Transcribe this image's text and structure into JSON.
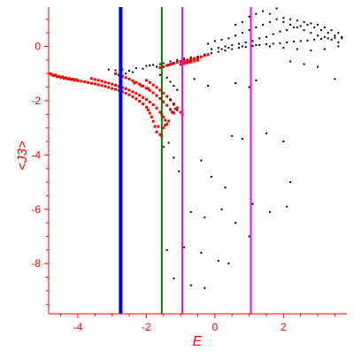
{
  "chart_data": {
    "type": "scatter",
    "xlabel": "E",
    "ylabel": "<J3>",
    "xlim": [
      -4.85,
      3.85
    ],
    "ylim": [
      -9.85,
      1.45
    ],
    "xticks": [
      -4,
      -2,
      0,
      2
    ],
    "xtick_labels": [
      "-4",
      "-2",
      "0",
      "2"
    ],
    "yticks": [
      0,
      -2,
      -4,
      -6,
      -8
    ],
    "ytick_labels": [
      "0",
      "-2",
      "-4",
      "-6",
      "-8"
    ],
    "grid": false,
    "colors": {
      "axis": "#ff0000",
      "red_series": "#ff0000",
      "black_series": "#000000"
    },
    "vertical_lines": [
      {
        "x": -2.75,
        "color": "#0000ff",
        "width": 4
      },
      {
        "x": -1.55,
        "color": "#008000",
        "width": 2
      },
      {
        "x": -0.95,
        "color": "#ff00ff",
        "width": 2
      },
      {
        "x": 1.05,
        "color": "#ff00ff",
        "width": 2
      }
    ],
    "series": [
      {
        "color": "#ff0000",
        "marker_size": 3,
        "points": [
          [
            -4.8,
            -1.0
          ],
          [
            -4.75,
            -1.05
          ],
          [
            -4.7,
            -1.08
          ],
          [
            -4.65,
            -1.05
          ],
          [
            -4.6,
            -1.12
          ],
          [
            -4.55,
            -1.1
          ],
          [
            -4.5,
            -1.15
          ],
          [
            -4.45,
            -1.12
          ],
          [
            -4.4,
            -1.18
          ],
          [
            -4.35,
            -1.15
          ],
          [
            -4.3,
            -1.2
          ],
          [
            -4.25,
            -1.18
          ],
          [
            -4.2,
            -1.22
          ],
          [
            -4.15,
            -1.2
          ],
          [
            -4.1,
            -1.25
          ],
          [
            -4.05,
            -1.22
          ],
          [
            -4.0,
            -1.26
          ],
          [
            -3.9,
            -1.28
          ],
          [
            -3.8,
            -1.3
          ],
          [
            -3.7,
            -1.33
          ],
          [
            -3.6,
            -1.36
          ],
          [
            -3.5,
            -1.38
          ],
          [
            -3.4,
            -1.41
          ],
          [
            -3.3,
            -1.44
          ],
          [
            -3.2,
            -1.47
          ],
          [
            -3.1,
            -1.51
          ],
          [
            -3.0,
            -1.55
          ],
          [
            -2.9,
            -1.58
          ],
          [
            -2.8,
            -1.62
          ],
          [
            -2.7,
            -1.67
          ],
          [
            -2.6,
            -1.72
          ],
          [
            -2.5,
            -1.78
          ],
          [
            -2.4,
            -1.85
          ],
          [
            -2.3,
            -1.93
          ],
          [
            -2.2,
            -2.02
          ],
          [
            -2.1,
            -2.12
          ],
          [
            -2.0,
            -2.24
          ],
          [
            -1.95,
            -2.34
          ],
          [
            -1.9,
            -2.46
          ],
          [
            -1.85,
            -2.6
          ],
          [
            -1.8,
            -2.76
          ],
          [
            -1.75,
            -2.95
          ],
          [
            -1.7,
            -3.15
          ],
          [
            -3.6,
            -1.18
          ],
          [
            -3.5,
            -1.22
          ],
          [
            -3.4,
            -1.25
          ],
          [
            -3.3,
            -1.28
          ],
          [
            -3.2,
            -1.32
          ],
          [
            -3.1,
            -1.35
          ],
          [
            -3.0,
            -1.39
          ],
          [
            -2.9,
            -1.43
          ],
          [
            -2.8,
            -1.47
          ],
          [
            -2.7,
            -1.52
          ],
          [
            -2.6,
            -1.56
          ],
          [
            -2.5,
            -1.61
          ],
          [
            -2.4,
            -1.67
          ],
          [
            -2.3,
            -1.73
          ],
          [
            -2.2,
            -1.8
          ],
          [
            -2.1,
            -1.88
          ],
          [
            -2.0,
            -1.96
          ],
          [
            -1.9,
            -2.05
          ],
          [
            -1.8,
            -2.15
          ],
          [
            -1.7,
            -2.27
          ],
          [
            -1.6,
            -2.42
          ],
          [
            -1.55,
            -2.5
          ],
          [
            -1.5,
            -2.6
          ],
          [
            -1.45,
            -2.72
          ],
          [
            -1.4,
            -2.86
          ],
          [
            -2.9,
            -1.0
          ],
          [
            -2.8,
            -1.05
          ],
          [
            -2.7,
            -1.1
          ],
          [
            -2.6,
            -1.15
          ],
          [
            -2.5,
            -1.2
          ],
          [
            -2.4,
            -1.26
          ],
          [
            -2.3,
            -1.32
          ],
          [
            -2.2,
            -1.39
          ],
          [
            -2.1,
            -1.46
          ],
          [
            -2.0,
            -1.54
          ],
          [
            -1.9,
            -1.62
          ],
          [
            -1.8,
            -1.71
          ],
          [
            -1.7,
            -1.81
          ],
          [
            -1.6,
            -1.92
          ],
          [
            -1.5,
            -2.04
          ],
          [
            -1.4,
            -2.17
          ],
          [
            -1.3,
            -2.32
          ],
          [
            -1.25,
            -2.42
          ],
          [
            -2.0,
            -1.25
          ],
          [
            -1.9,
            -1.33
          ],
          [
            -1.8,
            -1.42
          ],
          [
            -1.7,
            -1.51
          ],
          [
            -1.6,
            -1.61
          ],
          [
            -1.5,
            -1.72
          ],
          [
            -1.4,
            -1.84
          ],
          [
            -1.3,
            -1.97
          ],
          [
            -1.2,
            -2.11
          ],
          [
            -1.1,
            -2.26
          ],
          [
            -1.0,
            -2.42
          ],
          [
            -0.95,
            -2.52
          ],
          [
            -1.6,
            -0.78
          ],
          [
            -1.5,
            -0.75
          ],
          [
            -1.4,
            -0.7
          ],
          [
            -1.3,
            -0.66
          ],
          [
            -1.2,
            -0.62
          ],
          [
            -1.1,
            -0.58
          ],
          [
            -1.0,
            -0.55
          ],
          [
            -0.9,
            -0.52
          ],
          [
            -0.8,
            -0.5
          ],
          [
            -0.7,
            -0.47
          ],
          [
            -0.6,
            -0.44
          ],
          [
            -0.5,
            -0.41
          ],
          [
            -0.4,
            -0.38
          ],
          [
            -0.3,
            -0.34
          ],
          [
            -0.2,
            -0.3
          ],
          [
            -1.0,
            -0.66
          ],
          [
            -0.9,
            -0.63
          ],
          [
            -0.8,
            -0.6
          ],
          [
            -0.7,
            -0.57
          ],
          [
            -0.6,
            -0.54
          ],
          [
            -0.5,
            -0.51
          ],
          [
            -1.65,
            -2.95
          ],
          [
            -1.6,
            -3.25
          ],
          [
            -1.55,
            -3.3
          ],
          [
            -1.5,
            -3.0
          ],
          [
            -1.45,
            -2.9
          ],
          [
            -1.35,
            -2.75
          ],
          [
            -1.2,
            -2.45
          ],
          [
            -1.15,
            -2.3
          ],
          [
            -2.35,
            -1.35
          ],
          [
            -2.15,
            -1.45
          ],
          [
            -1.95,
            -1.55
          ],
          [
            -1.35,
            -0.68
          ],
          [
            -1.25,
            -0.64
          ],
          [
            -0.85,
            -0.6
          ],
          [
            -0.75,
            -0.55
          ]
        ]
      },
      {
        "color": "#000000",
        "marker_size": 2,
        "points": [
          [
            -3.1,
            -0.85
          ],
          [
            -2.9,
            -0.88
          ],
          [
            -2.7,
            -0.85
          ],
          [
            -2.5,
            -0.9
          ],
          [
            -2.3,
            -0.8
          ],
          [
            -2.1,
            -0.82
          ],
          [
            -1.9,
            -0.7
          ],
          [
            -1.7,
            -0.75
          ],
          [
            -1.5,
            -0.62
          ],
          [
            -1.3,
            -0.55
          ],
          [
            -1.1,
            -0.5
          ],
          [
            -0.9,
            -0.45
          ],
          [
            -0.7,
            -0.4
          ],
          [
            -0.5,
            -0.38
          ],
          [
            -0.3,
            -0.3
          ],
          [
            -0.1,
            -0.25
          ],
          [
            0.1,
            -0.2
          ],
          [
            0.3,
            -0.15
          ],
          [
            0.5,
            -0.1
          ],
          [
            0.7,
            -0.05
          ],
          [
            0.9,
            -0.02
          ],
          [
            1.1,
            0.02
          ],
          [
            1.3,
            0.05
          ],
          [
            1.5,
            0.08
          ],
          [
            1.7,
            0.1
          ],
          [
            1.9,
            0.12
          ],
          [
            2.1,
            0.15
          ],
          [
            2.3,
            0.18
          ],
          [
            2.5,
            0.2
          ],
          [
            2.7,
            0.22
          ],
          [
            2.9,
            0.25
          ],
          [
            3.1,
            0.28
          ],
          [
            3.3,
            0.3
          ],
          [
            3.5,
            0.32
          ],
          [
            3.7,
            0.35
          ],
          [
            -0.2,
            0.1
          ],
          [
            0.0,
            0.2
          ],
          [
            0.2,
            0.25
          ],
          [
            0.4,
            0.3
          ],
          [
            0.6,
            0.4
          ],
          [
            0.8,
            0.5
          ],
          [
            1.0,
            0.6
          ],
          [
            1.2,
            0.7
          ],
          [
            1.4,
            0.8
          ],
          [
            1.6,
            0.9
          ],
          [
            1.8,
            1.0
          ],
          [
            2.0,
            1.05
          ],
          [
            2.2,
            1.0
          ],
          [
            2.4,
            0.95
          ],
          [
            2.6,
            0.9
          ],
          [
            2.8,
            0.85
          ],
          [
            3.0,
            0.8
          ],
          [
            3.2,
            0.7
          ],
          [
            3.4,
            0.6
          ],
          [
            3.6,
            0.5
          ],
          [
            -0.1,
            -0.1
          ],
          [
            0.1,
            -0.05
          ],
          [
            0.3,
            0.0
          ],
          [
            0.5,
            0.05
          ],
          [
            0.7,
            0.1
          ],
          [
            0.9,
            0.15
          ],
          [
            1.1,
            0.2
          ],
          [
            1.3,
            0.3
          ],
          [
            1.5,
            0.35
          ],
          [
            1.7,
            0.45
          ],
          [
            1.9,
            0.55
          ],
          [
            2.1,
            0.6
          ],
          [
            2.3,
            0.7
          ],
          [
            2.5,
            0.75
          ],
          [
            2.7,
            0.8
          ],
          [
            2.9,
            0.7
          ],
          [
            3.1,
            0.6
          ],
          [
            3.3,
            0.5
          ],
          [
            3.5,
            0.4
          ],
          [
            3.7,
            0.3
          ],
          [
            0.6,
            0.8
          ],
          [
            0.8,
            0.9
          ],
          [
            1.0,
            1.1
          ],
          [
            1.2,
            1.2
          ],
          [
            1.4,
            1.3
          ],
          [
            1.6,
            1.2
          ],
          [
            1.8,
            1.4
          ],
          [
            2.0,
            0.9
          ],
          [
            2.2,
            0.8
          ],
          [
            2.4,
            0.7
          ],
          [
            2.6,
            0.6
          ],
          [
            2.8,
            0.5
          ],
          [
            3.0,
            0.4
          ],
          [
            3.2,
            0.35
          ],
          [
            3.4,
            0.25
          ],
          [
            3.6,
            0.15
          ],
          [
            0.2,
            -0.1
          ],
          [
            0.4,
            -0.05
          ],
          [
            0.8,
            0.0
          ],
          [
            1.2,
            0.05
          ],
          [
            1.6,
            0.0
          ],
          [
            2.0,
            -0.05
          ],
          [
            2.4,
            -0.1
          ],
          [
            2.8,
            -0.15
          ],
          [
            3.2,
            -0.1
          ],
          [
            3.6,
            0.0
          ],
          [
            -2.0,
            -0.72
          ],
          [
            -1.8,
            -0.68
          ],
          [
            -1.6,
            -0.65
          ],
          [
            -2.4,
            -0.95
          ],
          [
            -2.6,
            -1.0
          ],
          [
            -1.6,
            -1.05
          ],
          [
            -1.4,
            -1.15
          ],
          [
            -1.3,
            -1.3
          ],
          [
            -1.2,
            -1.45
          ],
          [
            -1.1,
            -1.6
          ],
          [
            -0.6,
            -1.2
          ],
          [
            -0.2,
            -1.45
          ],
          [
            0.6,
            -1.35
          ],
          [
            1.0,
            -1.5
          ],
          [
            1.2,
            -1.25
          ],
          [
            2.2,
            -0.55
          ],
          [
            2.6,
            -0.65
          ],
          [
            3.0,
            -0.75
          ],
          [
            3.5,
            -1.2
          ],
          [
            -1.3,
            -1.95
          ],
          [
            -1.2,
            -2.15
          ],
          [
            -1.1,
            -2.35
          ],
          [
            -1.5,
            -3.7
          ],
          [
            -1.35,
            -3.55
          ],
          [
            -1.2,
            -4.1
          ],
          [
            -1.05,
            -4.6
          ],
          [
            -0.4,
            -4.2
          ],
          [
            0.5,
            -3.3
          ],
          [
            0.8,
            -3.4
          ],
          [
            1.5,
            -3.2
          ],
          [
            2.0,
            -3.5
          ],
          [
            2.2,
            -5.0
          ],
          [
            2.1,
            -5.9
          ],
          [
            1.6,
            -6.1
          ],
          [
            1.1,
            -5.8
          ],
          [
            -0.1,
            -4.8
          ],
          [
            0.3,
            -5.2
          ],
          [
            -0.7,
            -6.1
          ],
          [
            -0.3,
            -6.3
          ],
          [
            0.2,
            -6.0
          ],
          [
            0.6,
            -6.5
          ],
          [
            1.0,
            -7.0
          ],
          [
            -0.9,
            -7.4
          ],
          [
            -0.4,
            -7.6
          ],
          [
            0.1,
            -7.9
          ],
          [
            0.4,
            -8.0
          ],
          [
            -1.4,
            -7.5
          ],
          [
            -1.2,
            -8.55
          ],
          [
            -0.7,
            -8.8
          ],
          [
            -0.3,
            -8.9
          ]
        ]
      }
    ]
  }
}
